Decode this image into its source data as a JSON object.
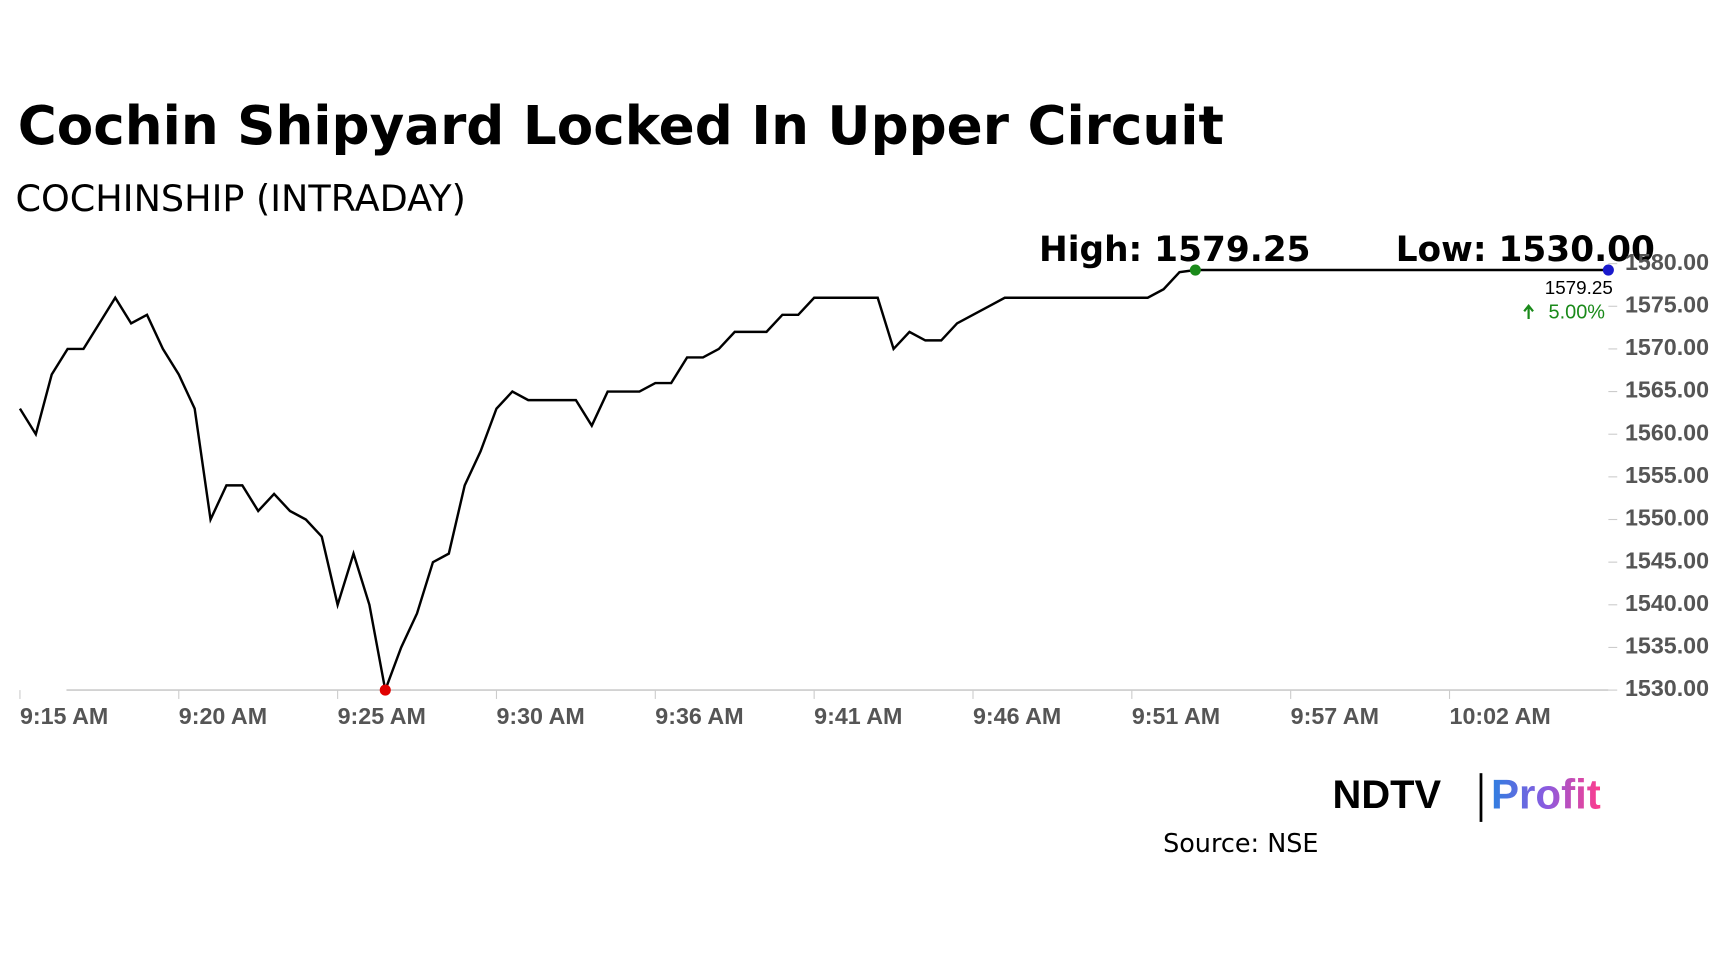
{
  "chart_data": {
    "type": "line",
    "title": "Cochin Shipyard Locked In Upper Circuit",
    "subtitle": "COCHINSHIP (INTRADAY)",
    "annotations": [
      "High: 1579.25",
      "Low: 1530.00"
    ],
    "last_price": 1579.25,
    "change_label": "5.00%",
    "categories": [
      "9:15 AM",
      null,
      null,
      null,
      null,
      null,
      null,
      null,
      null,
      null,
      "9:20 AM",
      null,
      null,
      null,
      null,
      null,
      null,
      null,
      null,
      null,
      "9:25 AM",
      null,
      null,
      null,
      null,
      null,
      null,
      null,
      null,
      null,
      "9:30 AM",
      null,
      null,
      null,
      null,
      null,
      null,
      null,
      null,
      null,
      "9:36 AM",
      null,
      null,
      null,
      null,
      null,
      null,
      null,
      null,
      null,
      "9:41 AM",
      null,
      null,
      null,
      null,
      null,
      null,
      null,
      null,
      null,
      "9:46 AM",
      null,
      null,
      null,
      null,
      null,
      null,
      null,
      null,
      null,
      "9:51 AM",
      null,
      null,
      null,
      null,
      null,
      null,
      null,
      null,
      null,
      "9:57 AM",
      null,
      null,
      null,
      null,
      null,
      null,
      null,
      null,
      null,
      "10:02 AM",
      null,
      null,
      null,
      null,
      null,
      null,
      null,
      null,
      null,
      null
    ],
    "series": [
      {
        "name": "COCHINSHIP",
        "color": "#000000",
        "values": [
          1563,
          1560,
          1567,
          1570,
          1570,
          1573,
          1576,
          1573,
          1574,
          1570,
          1567,
          1563,
          1550,
          1554,
          1554,
          1551,
          1553,
          1551,
          1550,
          1548,
          1540,
          1546,
          1540,
          1530,
          1535,
          1539,
          1545,
          1546,
          1554,
          1558,
          1563,
          1565,
          1564,
          1564,
          1564,
          1564,
          1561,
          1565,
          1565,
          1565,
          1566,
          1566,
          1569,
          1569,
          1570,
          1572,
          1572,
          1572,
          1574,
          1574,
          1576,
          1576,
          1576,
          1576,
          1576,
          1570,
          1572,
          1571,
          1571,
          1573,
          1574,
          1575,
          1576,
          1576,
          1576,
          1576,
          1576,
          1576,
          1576,
          1576,
          1576,
          1576,
          1577,
          1579,
          1579.25,
          1579.25,
          1579.25,
          1579.25,
          1579.25,
          1579.25,
          1579.25,
          1579.25,
          1579.25,
          1579.25,
          1579.25,
          1579.25,
          1579.25,
          1579.25,
          1579.25,
          1579.25,
          1579.25,
          1579.25,
          1579.25,
          1579.25,
          1579.25,
          1579.25,
          1579.25,
          1579.25,
          1579.25,
          1579.25,
          1579.25
        ]
      }
    ],
    "high_color": "#1a8a1a",
    "low_color": "#e00000",
    "last_color": "#1a1acc",
    "change_color": "#1a8a1a",
    "ylim": [
      1530,
      1580
    ],
    "yticks": [
      {
        "value": 1530,
        "label": "1530.00"
      },
      {
        "value": 1535,
        "label": "1535.00"
      },
      {
        "value": 1540,
        "label": "1540.00"
      },
      {
        "value": 1545,
        "label": "1545.00"
      },
      {
        "value": 1550,
        "label": "1550.00"
      },
      {
        "value": 1555,
        "label": "1555.00"
      },
      {
        "value": 1560,
        "label": "1560.00"
      },
      {
        "value": 1565,
        "label": "1565.00"
      },
      {
        "value": 1570,
        "label": "1570.00"
      },
      {
        "value": 1575,
        "label": "1575.00"
      },
      {
        "value": 1580,
        "label": "1580.00"
      }
    ],
    "source": "Source: NSE",
    "logo": [
      "NDTV",
      "Profit"
    ]
  }
}
